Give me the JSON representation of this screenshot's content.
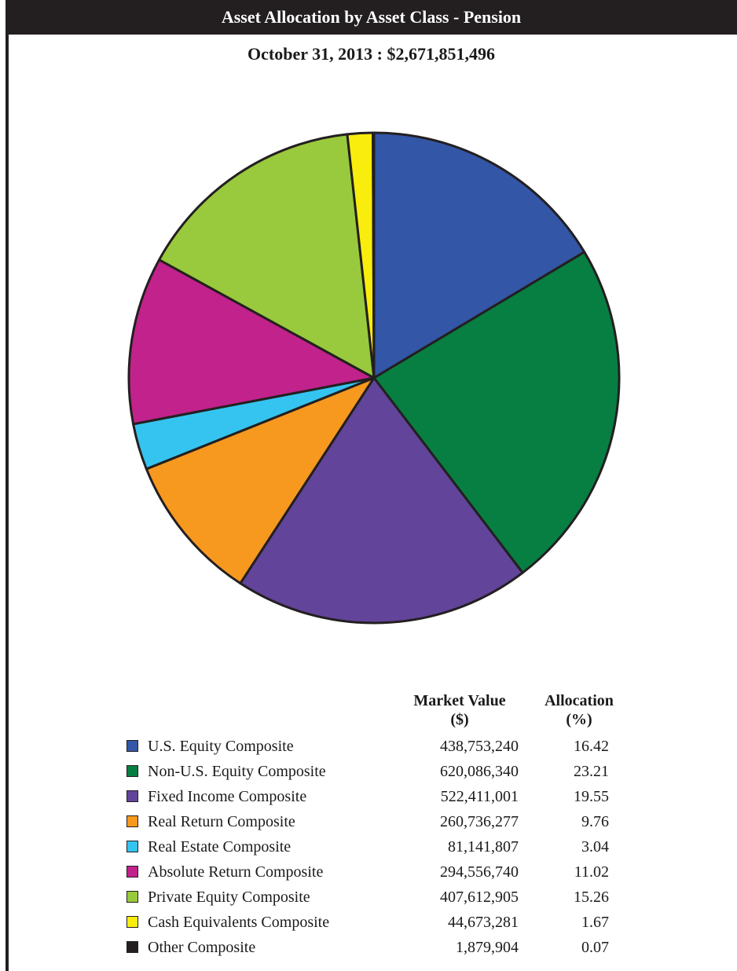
{
  "header": {
    "title": "Asset Allocation by Asset Class - Pension",
    "subtitle": "October 31, 2013 : $2,671,851,496"
  },
  "table": {
    "col_market_value": "Market Value",
    "col_market_value_unit": "($)",
    "col_allocation": "Allocation",
    "col_allocation_unit": "(%)"
  },
  "chart_data": {
    "type": "pie",
    "title": "Asset Allocation by Asset Class - Pension",
    "subtitle": "October 31, 2013 : $2,671,851,496",
    "legend_placement": "bottom",
    "slices": [
      {
        "label": "U.S. Equity Composite",
        "market_value": "438,753,240",
        "allocation": "16.42",
        "value": 16.42,
        "color": "#3356a7"
      },
      {
        "label": "Non-U.S. Equity Composite",
        "market_value": "620,086,340",
        "allocation": "23.21",
        "value": 23.21,
        "color": "#077f42"
      },
      {
        "label": "Fixed Income Composite",
        "market_value": "522,411,001",
        "allocation": "19.55",
        "value": 19.55,
        "color": "#62449a"
      },
      {
        "label": "Real Return Composite",
        "market_value": "260,736,277",
        "allocation": "9.76",
        "value": 9.76,
        "color": "#f7981f"
      },
      {
        "label": "Real Estate Composite",
        "market_value": "81,141,807",
        "allocation": "3.04",
        "value": 3.04,
        "color": "#35c4f0"
      },
      {
        "label": "Absolute Return Composite",
        "market_value": "294,556,740",
        "allocation": "11.02",
        "value": 11.02,
        "color": "#c2228b"
      },
      {
        "label": "Private Equity Composite",
        "market_value": "407,612,905",
        "allocation": "15.26",
        "value": 15.26,
        "color": "#99c93c"
      },
      {
        "label": "Cash Equivalents Composite",
        "market_value": "44,673,281",
        "allocation": "1.67",
        "value": 1.67,
        "color": "#f9ed0e"
      },
      {
        "label": "Other Composite",
        "market_value": "1,879,904",
        "allocation": "0.07",
        "value": 0.07,
        "color": "#231f20"
      }
    ]
  }
}
